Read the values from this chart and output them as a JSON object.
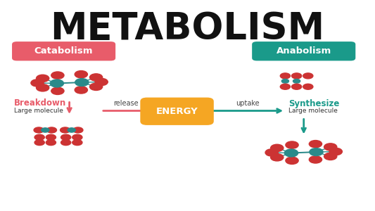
{
  "title": "METABOLISM",
  "title_fontsize": 38,
  "bg_color": "#ffffff",
  "catabolism_label": "Catabolism",
  "anabolism_label": "Anabolism",
  "catabolism_color": "#e85c6a",
  "anabolism_color": "#1a9a8a",
  "energy_label": "ENERGY",
  "energy_color": "#f5a623",
  "breakdown_label": "Breakdown",
  "breakdown_sub": "Large molecule",
  "breakdown_color": "#e85c6a",
  "release_label": "release",
  "uptake_label": "uptake",
  "synthesize_label": "Synthesize",
  "synthesize_sub": "Large molecule",
  "synthesize_color": "#1a9a8a",
  "atom_red": "#cc3333",
  "atom_teal": "#2a8a8a",
  "arrow_red": "#e85c6a",
  "arrow_teal": "#1a9a8a"
}
